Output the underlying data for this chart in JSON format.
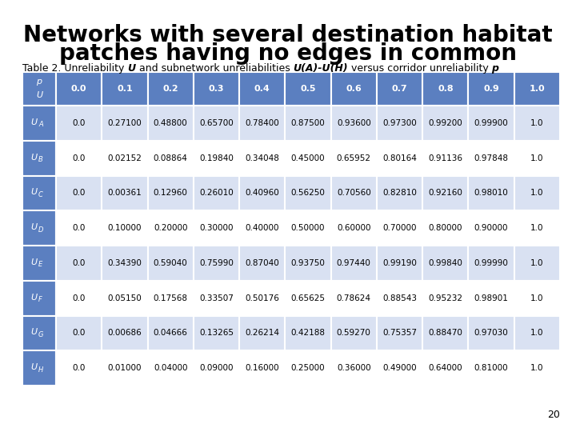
{
  "title_line1": "Networks with several destination habitat",
  "title_line2": "patches having no edges in common",
  "col_headers": [
    "0.0",
    "0.1",
    "0.2",
    "0.3",
    "0.4",
    "0.5",
    "0.6",
    "0.7",
    "0.8",
    "0.9",
    "1.0"
  ],
  "table_data": [
    [
      "0.0",
      "0.27100",
      "0.48800",
      "0.65700",
      "0.78400",
      "0.87500",
      "0.93600",
      "0.97300",
      "0.99200",
      "0.99900",
      "1.0"
    ],
    [
      "0.0",
      "0.02152",
      "0.08864",
      "0.19840",
      "0.34048",
      "0.45000",
      "0.65952",
      "0.80164",
      "0.91136",
      "0.97848",
      "1.0"
    ],
    [
      "0.0",
      "0.00361",
      "0.12960",
      "0.26010",
      "0.40960",
      "0.56250",
      "0.70560",
      "0.82810",
      "0.92160",
      "0.98010",
      "1.0"
    ],
    [
      "0.0",
      "0.10000",
      "0.20000",
      "0.30000",
      "0.40000",
      "0.50000",
      "0.60000",
      "0.70000",
      "0.80000",
      "0.90000",
      "1.0"
    ],
    [
      "0.0",
      "0.34390",
      "0.59040",
      "0.75990",
      "0.87040",
      "0.93750",
      "0.97440",
      "0.99190",
      "0.99840",
      "0.99990",
      "1.0"
    ],
    [
      "0.0",
      "0.05150",
      "0.17568",
      "0.33507",
      "0.50176",
      "0.65625",
      "0.78624",
      "0.88543",
      "0.95232",
      "0.98901",
      "1.0"
    ],
    [
      "0.0",
      "0.00686",
      "0.04666",
      "0.13265",
      "0.26214",
      "0.42188",
      "0.59270",
      "0.75357",
      "0.88470",
      "0.97030",
      "1.0"
    ],
    [
      "0.0",
      "0.01000",
      "0.04000",
      "0.09000",
      "0.16000",
      "0.25000",
      "0.36000",
      "0.49000",
      "0.64000",
      "0.81000",
      "1.0"
    ]
  ],
  "row_label_letters": [
    "A",
    "B",
    "C",
    "D",
    "E",
    "F",
    "G",
    "H"
  ],
  "header_bg": "#5b7fc0",
  "row_header_bg": "#5b7fc0",
  "alt_row_bg1": "#d9e1f2",
  "alt_row_bg2": "#ffffff",
  "header_text_color": "#ffffff",
  "cell_text_color": "#000000",
  "page_number": "20",
  "background_color": "#ffffff",
  "title_fontsize": 20,
  "subtitle_fontsize": 9,
  "header_fontsize": 8,
  "cell_fontsize": 7.5,
  "row_label_fontsize": 8
}
